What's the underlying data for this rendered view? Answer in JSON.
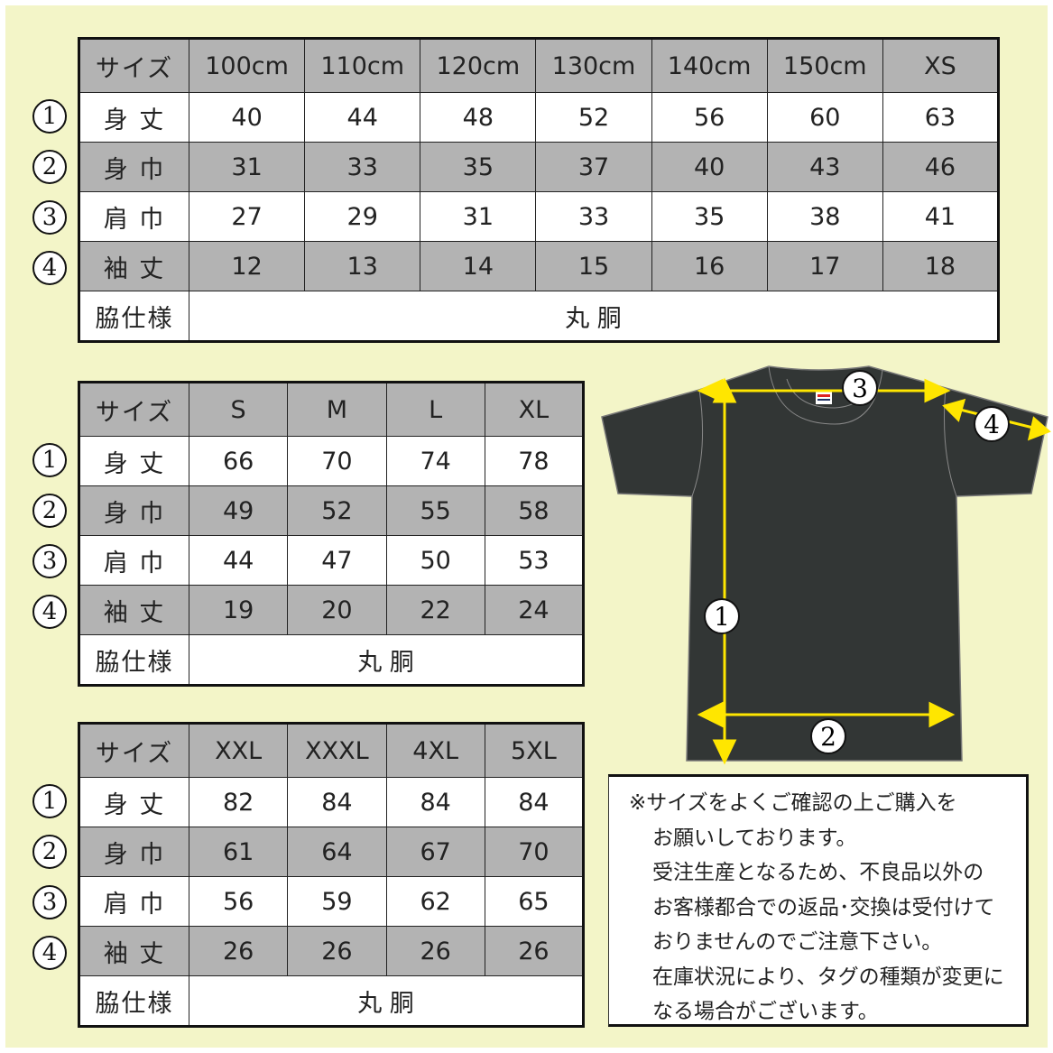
{
  "colors": {
    "background": "#f3f5c8",
    "header_gray": "#b3b3b3",
    "shirt": "#323635",
    "arrow": "#ffe600"
  },
  "tables": [
    {
      "header_label": "サイズ",
      "sizes": [
        "100cm",
        "110cm",
        "120cm",
        "130cm",
        "140cm",
        "150cm",
        "XS"
      ],
      "rows": [
        {
          "num": "①",
          "label": "身 丈",
          "values": [
            "40",
            "44",
            "48",
            "52",
            "56",
            "60",
            "63"
          ]
        },
        {
          "num": "②",
          "label": "身 巾",
          "values": [
            "31",
            "33",
            "35",
            "37",
            "40",
            "43",
            "46"
          ]
        },
        {
          "num": "③",
          "label": "肩 巾",
          "values": [
            "27",
            "29",
            "31",
            "33",
            "35",
            "38",
            "41"
          ]
        },
        {
          "num": "④",
          "label": "袖 丈",
          "values": [
            "12",
            "13",
            "14",
            "15",
            "16",
            "17",
            "18"
          ]
        }
      ],
      "side_label": "脇仕様",
      "side_value": "丸 胴"
    },
    {
      "header_label": "サイズ",
      "sizes": [
        "S",
        "M",
        "L",
        "XL"
      ],
      "rows": [
        {
          "num": "①",
          "label": "身 丈",
          "values": [
            "66",
            "70",
            "74",
            "78"
          ]
        },
        {
          "num": "②",
          "label": "身 巾",
          "values": [
            "49",
            "52",
            "55",
            "58"
          ]
        },
        {
          "num": "③",
          "label": "肩 巾",
          "values": [
            "44",
            "47",
            "50",
            "53"
          ]
        },
        {
          "num": "④",
          "label": "袖 丈",
          "values": [
            "19",
            "20",
            "22",
            "24"
          ]
        }
      ],
      "side_label": "脇仕様",
      "side_value": "丸 胴"
    },
    {
      "header_label": "サイズ",
      "sizes": [
        "XXL",
        "XXXL",
        "4XL",
        "5XL"
      ],
      "rows": [
        {
          "num": "①",
          "label": "身 丈",
          "values": [
            "82",
            "84",
            "84",
            "84"
          ]
        },
        {
          "num": "②",
          "label": "身 巾",
          "values": [
            "61",
            "64",
            "67",
            "70"
          ]
        },
        {
          "num": "③",
          "label": "肩 巾",
          "values": [
            "56",
            "59",
            "62",
            "65"
          ]
        },
        {
          "num": "④",
          "label": "袖 丈",
          "values": [
            "26",
            "26",
            "26",
            "26"
          ]
        }
      ],
      "side_label": "脇仕様",
      "side_value": "丸 胴"
    }
  ],
  "diagram": {
    "labels": [
      "1",
      "2",
      "3",
      "4"
    ]
  },
  "note": {
    "lines": [
      "※サイズをよくご確認の上ご購入を",
      "お願いしております。",
      "受注生産となるため、不良品以外の",
      "お客様都合での返品･交換は受付けて",
      "おりませんのでご注意下さい。",
      "在庫状況により、タグの種類が変更に",
      "なる場合がございます。"
    ]
  }
}
